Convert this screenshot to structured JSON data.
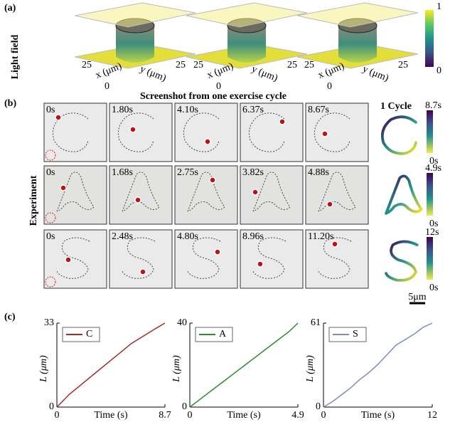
{
  "panel_a": {
    "label": "(a)",
    "row_label": "Light field",
    "colorbar_ticks": [
      "1",
      "0"
    ],
    "axis_labels": {
      "x_end": "25",
      "x": "x (μm)",
      "origin": "0",
      "y": "y (μm)",
      "y_end": "25"
    }
  },
  "panel_b": {
    "label": "(b)",
    "title": "Screenshot from one exercise cycle",
    "row_label": "Experiment",
    "cycle_label": "1 Cycle",
    "scale_bar": "5μm",
    "rows": [
      {
        "times": [
          "0s",
          "1.80s",
          "4.10s",
          "6.37s",
          "8.67s"
        ],
        "colorbar": [
          "8.7s",
          "0s"
        ]
      },
      {
        "times": [
          "0s",
          "1.68s",
          "2.75s",
          "3.82s",
          "4.88s"
        ],
        "colorbar": [
          "4.9s",
          "0s"
        ]
      },
      {
        "times": [
          "0s",
          "2.48s",
          "4.80s",
          "8.96s",
          "11.20s"
        ],
        "colorbar": [
          "12s",
          "0s"
        ]
      }
    ]
  },
  "panel_c": {
    "label": "(c)"
  },
  "chart_data": [
    {
      "type": "line",
      "xlabel": "Time (s)",
      "ylabel": "L (μm)",
      "x": [
        0,
        1,
        2,
        3,
        4,
        5,
        6,
        7,
        8,
        8.7
      ],
      "series": [
        {
          "name": "C",
          "color": "#a52a2a",
          "values": [
            0,
            5,
            9,
            13,
            17,
            21,
            25,
            28,
            31,
            33
          ]
        }
      ],
      "xlim": [
        0,
        8.7
      ],
      "ylim": [
        0,
        33
      ],
      "xticks": [
        0,
        8.7
      ],
      "yticks": [
        0,
        33
      ]
    },
    {
      "type": "line",
      "xlabel": "Time (s)",
      "ylabel": "L (μm)",
      "x": [
        0,
        0.5,
        1,
        1.5,
        2,
        2.5,
        3,
        3.5,
        4,
        4.5,
        4.9
      ],
      "series": [
        {
          "name": "A",
          "color": "#2e8b2e",
          "values": [
            0,
            4,
            8,
            12,
            16,
            20,
            24,
            28,
            32,
            36,
            40
          ]
        }
      ],
      "xlim": [
        0,
        4.9
      ],
      "ylim": [
        0,
        40
      ],
      "xticks": [
        0,
        4.9
      ],
      "yticks": [
        0,
        40
      ]
    },
    {
      "type": "line",
      "xlabel": "Time (s)",
      "ylabel": "L (μm)",
      "x": [
        0,
        1,
        2,
        3,
        4,
        5,
        6,
        7,
        8,
        9,
        10,
        11,
        12
      ],
      "series": [
        {
          "name": "S",
          "color": "#7b8cc8",
          "values": [
            0,
            4,
            9,
            14,
            20,
            25,
            31,
            38,
            45,
            49,
            53,
            58,
            61
          ]
        }
      ],
      "xlim": [
        0,
        12
      ],
      "ylim": [
        0,
        61
      ],
      "xticks": [
        0,
        12
      ],
      "yticks": [
        0,
        61
      ]
    }
  ]
}
